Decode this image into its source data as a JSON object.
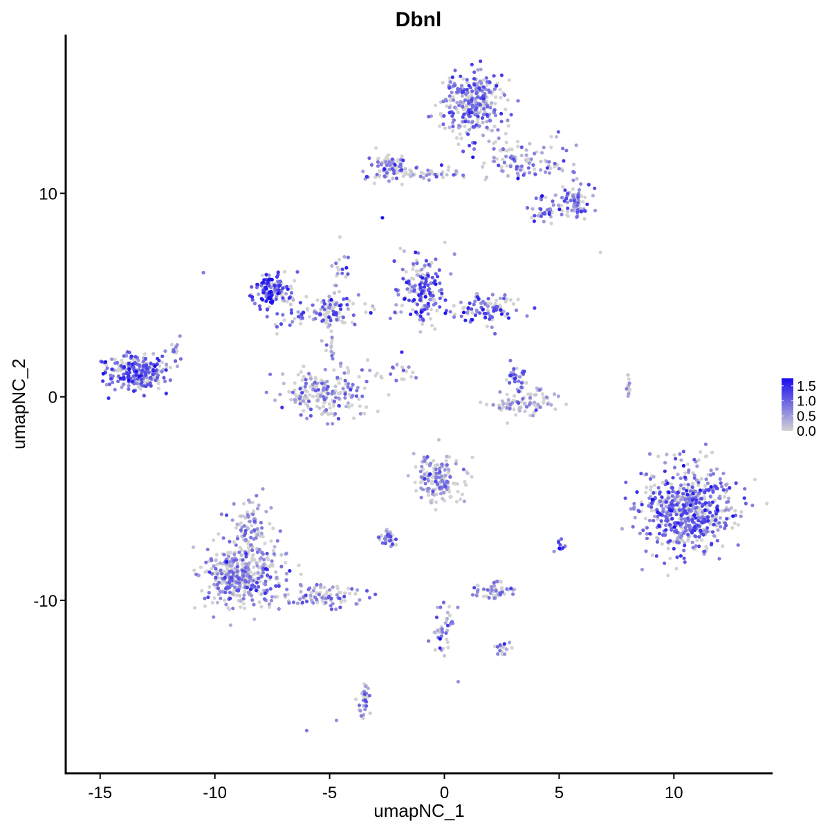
{
  "chart_data": {
    "type": "scatter",
    "title": "Dbnl",
    "xlabel": "umapNC_1",
    "ylabel": "umapNC_2",
    "xlim": [
      -16.5,
      14.3
    ],
    "ylim": [
      -18.5,
      17.8
    ],
    "x_ticks": [
      -15,
      -10,
      -5,
      0,
      5,
      10
    ],
    "x_tick_labels": [
      "-15",
      "-10",
      "-5",
      "0",
      "5",
      "10"
    ],
    "y_ticks": [
      10,
      0,
      -10
    ],
    "y_tick_labels": [
      "10",
      "0",
      "-10"
    ],
    "grid": false,
    "color_scale": {
      "low_color": "#d3d3d3",
      "high_color": "#1a0df0",
      "range": [
        0.0,
        1.75
      ],
      "breaks": [
        1.5,
        1.0,
        0.5,
        0.0
      ],
      "labels": [
        "1.5",
        "1.0",
        "0.5",
        "0.0"
      ],
      "legend_position": "right"
    },
    "clusters": [
      {
        "center": [
          1.3,
          14.3
        ],
        "spread": [
          1.0,
          1.0
        ],
        "n": 300,
        "expr": 0.8
      },
      {
        "center": [
          3.5,
          11.5
        ],
        "spread": [
          1.4,
          0.8
        ],
        "n": 110,
        "expr": 0.6
      },
      {
        "center": [
          5.7,
          9.6
        ],
        "spread": [
          0.5,
          0.5
        ],
        "n": 70,
        "expr": 0.8
      },
      {
        "center": [
          4.3,
          9.1
        ],
        "spread": [
          0.4,
          0.4
        ],
        "n": 35,
        "expr": 0.9
      },
      {
        "center": [
          -2.5,
          11.3
        ],
        "spread": [
          0.5,
          0.5
        ],
        "n": 80,
        "expr": 0.8
      },
      {
        "center": [
          -0.8,
          11.0
        ],
        "spread": [
          1.2,
          0.25
        ],
        "n": 40,
        "expr": 0.5
      },
      {
        "center": [
          -7.5,
          5.3
        ],
        "spread": [
          0.5,
          0.6
        ],
        "n": 130,
        "expr": 1.2
      },
      {
        "center": [
          -5.5,
          4.2
        ],
        "spread": [
          1.4,
          0.5
        ],
        "n": 110,
        "expr": 0.9
      },
      {
        "center": [
          -1.0,
          5.3
        ],
        "spread": [
          0.7,
          1.0
        ],
        "n": 170,
        "expr": 1.0
      },
      {
        "center": [
          1.8,
          4.3
        ],
        "spread": [
          1.0,
          0.5
        ],
        "n": 100,
        "expr": 0.9
      },
      {
        "center": [
          -13.4,
          1.3
        ],
        "spread": [
          0.9,
          0.6
        ],
        "n": 260,
        "expr": 0.9
      },
      {
        "center": [
          -5.2,
          0.2
        ],
        "spread": [
          1.3,
          0.8
        ],
        "n": 200,
        "expr": 0.6
      },
      {
        "center": [
          3.4,
          -0.3
        ],
        "spread": [
          1.0,
          0.4
        ],
        "n": 90,
        "expr": 0.5
      },
      {
        "center": [
          3.2,
          0.8
        ],
        "spread": [
          0.25,
          0.5
        ],
        "n": 30,
        "expr": 1.0
      },
      {
        "center": [
          10.6,
          -5.5
        ],
        "spread": [
          1.3,
          1.4
        ],
        "n": 620,
        "expr": 0.9
      },
      {
        "center": [
          -8.8,
          -8.8
        ],
        "spread": [
          1.1,
          1.0
        ],
        "n": 420,
        "expr": 0.6
      },
      {
        "center": [
          -8.5,
          -6.5
        ],
        "spread": [
          0.6,
          1.0
        ],
        "n": 90,
        "expr": 0.5
      },
      {
        "center": [
          -5.2,
          -9.8
        ],
        "spread": [
          1.2,
          0.4
        ],
        "n": 90,
        "expr": 0.6
      },
      {
        "center": [
          -0.3,
          -4.0
        ],
        "spread": [
          0.7,
          0.8
        ],
        "n": 160,
        "expr": 0.5
      },
      {
        "center": [
          -2.5,
          -7.0
        ],
        "spread": [
          0.3,
          0.3
        ],
        "n": 35,
        "expr": 0.8
      },
      {
        "center": [
          2.2,
          -9.5
        ],
        "spread": [
          0.6,
          0.25
        ],
        "n": 55,
        "expr": 0.8
      },
      {
        "center": [
          0.0,
          -11.3
        ],
        "spread": [
          0.4,
          0.9
        ],
        "n": 40,
        "expr": 0.6
      },
      {
        "center": [
          -3.5,
          -14.8
        ],
        "spread": [
          0.2,
          0.6
        ],
        "n": 30,
        "expr": 0.7
      },
      {
        "center": [
          2.5,
          -12.4
        ],
        "spread": [
          0.25,
          0.2
        ],
        "n": 15,
        "expr": 0.8
      },
      {
        "center": [
          -5.0,
          3.3
        ],
        "spread": [
          0.2,
          1.2
        ],
        "n": 25,
        "expr": 0.6
      },
      {
        "center": [
          -4.5,
          6.0
        ],
        "spread": [
          0.3,
          1.0
        ],
        "n": 20,
        "expr": 0.8
      },
      {
        "center": [
          -2.0,
          1.2
        ],
        "spread": [
          0.8,
          0.4
        ],
        "n": 20,
        "expr": 0.5
      },
      {
        "center": [
          8.0,
          0.3
        ],
        "spread": [
          0.1,
          0.5
        ],
        "n": 12,
        "expr": 0.3
      },
      {
        "center": [
          -11.8,
          2.3
        ],
        "spread": [
          0.3,
          0.4
        ],
        "n": 12,
        "expr": 0.5
      },
      {
        "center": [
          5.0,
          -7.3
        ],
        "spread": [
          0.15,
          0.3
        ],
        "n": 10,
        "expr": 0.8
      }
    ],
    "points": [
      {
        "x": -2.7,
        "y": 8.8,
        "v": 1.75
      },
      {
        "x": -10.5,
        "y": 6.1,
        "v": 0.8
      },
      {
        "x": -6.0,
        "y": -16.4,
        "v": 0.8
      },
      {
        "x": 6.8,
        "y": 7.1,
        "v": 0.0
      },
      {
        "x": -4.7,
        "y": -15.9,
        "v": 0.6
      },
      {
        "x": 0.6,
        "y": -14.0,
        "v": 0.6
      }
    ]
  }
}
